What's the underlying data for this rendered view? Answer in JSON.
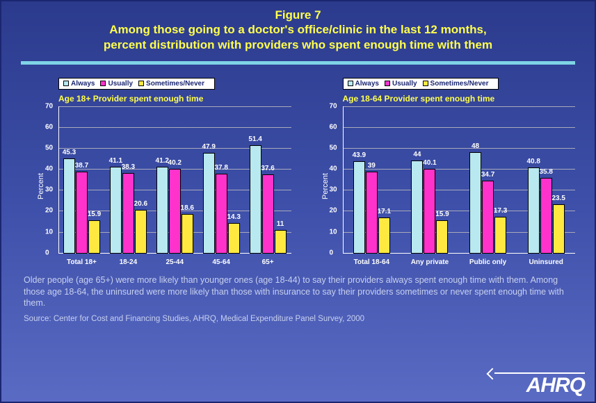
{
  "title": {
    "figure_num": "Figure 7",
    "line1": "Among those going to a doctor's office/clinic in the last 12 months,",
    "line2": "percent distribution with providers who spent enough time with them"
  },
  "legend": {
    "items": [
      "Always",
      "Usually",
      "Sometimes/Never"
    ],
    "colors": [
      "#b8e8f0",
      "#ff33cc",
      "#ffe940"
    ]
  },
  "chart_left": {
    "title": "Age 18+ Provider spent enough time",
    "y_axis_label": "Percent",
    "ymax": 70,
    "ytick_step": 10,
    "categories": [
      "Total 18+",
      "18-24",
      "25-44",
      "45-64",
      "65+"
    ],
    "series": [
      {
        "color": "#b8e8f0",
        "values": [
          45.3,
          41.1,
          41.2,
          47.9,
          51.4
        ]
      },
      {
        "color": "#ff33cc",
        "values": [
          38.7,
          38.3,
          40.2,
          37.8,
          37.6
        ]
      },
      {
        "color": "#ffe940",
        "values": [
          15.9,
          20.6,
          18.6,
          14.3,
          11
        ]
      }
    ]
  },
  "chart_right": {
    "title": "Age 18-64 Provider spent enough time",
    "y_axis_label": "Percent",
    "ymax": 70,
    "ytick_step": 10,
    "categories": [
      "Total 18-64",
      "Any private",
      "Public only",
      "Uninsured"
    ],
    "series": [
      {
        "color": "#b8e8f0",
        "values": [
          43.9,
          44,
          48,
          40.8
        ]
      },
      {
        "color": "#ff33cc",
        "values": [
          39,
          40.1,
          34.7,
          35.8
        ]
      },
      {
        "color": "#ffe940",
        "values": [
          17.1,
          15.9,
          17.3,
          23.5
        ]
      }
    ]
  },
  "caption": "Older people (age 65+) were more likely than younger ones (age 18-44) to say their providers always spent enough time with them. Among those age 18-64, the uninsured were more likely than those with insurance to say their providers sometimes or never spent enough time with them.",
  "source": "Source: Center for Cost and Financing Studies, AHRQ, Medical Expenditure Panel Survey, 2000",
  "logo": "AHRQ",
  "styling": {
    "background_gradient": [
      "#2b3a8c",
      "#3d4fa8",
      "#5a6bc4"
    ],
    "title_color": "#ffff4d",
    "divider_color": "#7fd4e6",
    "text_color": "#ffffff",
    "caption_color": "#c8d0f0"
  }
}
